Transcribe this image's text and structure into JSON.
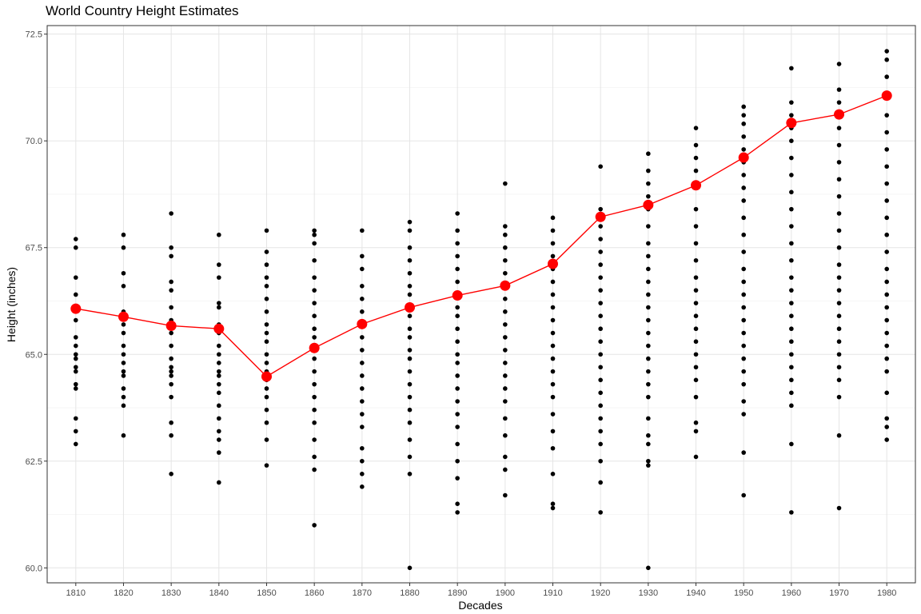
{
  "chart_data": {
    "type": "scatter",
    "title": "World Country Height Estimates",
    "xlabel": "Decades",
    "ylabel": "Height (inches)",
    "categories": [
      "1810",
      "1820",
      "1830",
      "1840",
      "1850",
      "1860",
      "1870",
      "1880",
      "1890",
      "1900",
      "1910",
      "1920",
      "1930",
      "1940",
      "1950",
      "1960",
      "1970",
      "1980"
    ],
    "ylim": [
      59.65,
      72.7
    ],
    "yticks": [
      60.0,
      62.5,
      65.0,
      67.5,
      70.0,
      72.5
    ],
    "ytick_labels": [
      "60.0",
      "62.5",
      "65.0",
      "67.5",
      "70.0",
      "72.5"
    ],
    "grid": true,
    "series": [
      {
        "type": "points",
        "color": "#000000",
        "values": [
          [
            67.7,
            67.5,
            66.8,
            66.4,
            66.1,
            65.8,
            65.4,
            65.2,
            65.0,
            64.9,
            64.7,
            64.6,
            64.3,
            64.2,
            63.5,
            63.2,
            62.9
          ],
          [
            67.8,
            67.5,
            66.9,
            66.6,
            66.0,
            65.9,
            65.7,
            65.5,
            65.2,
            65.0,
            64.8,
            64.6,
            64.5,
            64.2,
            64.0,
            63.8,
            63.1
          ],
          [
            68.3,
            67.5,
            67.3,
            66.7,
            66.5,
            66.1,
            65.8,
            65.5,
            65.2,
            64.9,
            64.7,
            64.6,
            64.5,
            64.3,
            64.0,
            63.4,
            63.1,
            62.2
          ],
          [
            67.8,
            67.1,
            66.8,
            66.2,
            66.1,
            65.7,
            65.5,
            65.2,
            65.0,
            64.8,
            64.6,
            64.5,
            64.3,
            64.1,
            63.8,
            63.5,
            63.2,
            63.0,
            62.7,
            62.0
          ],
          [
            67.9,
            67.4,
            67.1,
            66.8,
            66.6,
            66.3,
            66.0,
            65.7,
            65.5,
            65.3,
            65.0,
            64.8,
            64.6,
            64.4,
            64.2,
            64.0,
            63.7,
            63.4,
            63.0,
            62.4
          ],
          [
            67.9,
            67.8,
            67.6,
            67.2,
            66.8,
            66.5,
            66.2,
            65.9,
            65.6,
            65.4,
            65.1,
            64.9,
            64.6,
            64.3,
            64.0,
            63.7,
            63.4,
            63.0,
            62.6,
            62.3,
            61.0
          ],
          [
            67.9,
            67.3,
            67.0,
            66.6,
            66.3,
            66.0,
            65.7,
            65.4,
            65.1,
            64.8,
            64.5,
            64.2,
            63.9,
            63.6,
            63.3,
            62.8,
            62.5,
            62.2,
            61.9
          ],
          [
            68.1,
            67.9,
            67.5,
            67.2,
            66.9,
            66.6,
            66.4,
            66.1,
            65.9,
            65.6,
            65.4,
            65.1,
            64.9,
            64.6,
            64.3,
            64.0,
            63.7,
            63.4,
            63.0,
            62.6,
            62.2,
            60.0
          ],
          [
            68.3,
            67.9,
            67.6,
            67.3,
            67.0,
            66.7,
            66.4,
            66.1,
            65.9,
            65.6,
            65.3,
            65.0,
            64.8,
            64.5,
            64.2,
            63.9,
            63.6,
            63.3,
            62.9,
            62.5,
            62.1,
            61.5,
            61.3
          ],
          [
            69.0,
            68.0,
            67.8,
            67.5,
            67.2,
            66.9,
            66.6,
            66.3,
            66.0,
            65.7,
            65.4,
            65.1,
            64.8,
            64.5,
            64.2,
            63.9,
            63.5,
            63.1,
            62.6,
            62.3,
            61.7
          ],
          [
            68.2,
            67.9,
            67.6,
            67.3,
            67.0,
            66.7,
            66.4,
            66.1,
            65.8,
            65.5,
            65.2,
            64.9,
            64.6,
            64.3,
            64.0,
            63.6,
            63.2,
            62.8,
            62.2,
            61.5,
            61.4
          ],
          [
            69.4,
            68.4,
            68.0,
            67.7,
            67.4,
            67.1,
            66.8,
            66.5,
            66.2,
            65.9,
            65.6,
            65.3,
            65.0,
            64.7,
            64.4,
            64.1,
            63.8,
            63.5,
            63.2,
            62.9,
            62.5,
            62.0,
            61.3
          ],
          [
            69.7,
            69.3,
            69.0,
            68.7,
            68.4,
            68.0,
            67.6,
            67.3,
            67.0,
            66.7,
            66.4,
            66.1,
            65.8,
            65.5,
            65.2,
            64.9,
            64.6,
            64.3,
            64.0,
            63.5,
            63.1,
            62.9,
            62.5,
            62.4,
            60.0
          ],
          [
            70.3,
            69.9,
            69.6,
            69.3,
            68.9,
            68.4,
            68.0,
            67.6,
            67.2,
            66.8,
            66.5,
            66.2,
            65.9,
            65.6,
            65.3,
            65.0,
            64.7,
            64.4,
            64.0,
            63.4,
            63.2,
            62.6
          ],
          [
            70.8,
            70.6,
            70.4,
            70.1,
            69.8,
            69.5,
            69.2,
            68.9,
            68.6,
            68.2,
            67.8,
            67.4,
            67.0,
            66.7,
            66.4,
            66.1,
            65.8,
            65.5,
            65.2,
            64.9,
            64.6,
            64.3,
            63.9,
            63.6,
            62.7,
            61.7
          ],
          [
            71.7,
            70.9,
            70.6,
            70.3,
            70.0,
            69.6,
            69.2,
            68.8,
            68.4,
            68.0,
            67.6,
            67.2,
            66.8,
            66.5,
            66.2,
            65.9,
            65.6,
            65.3,
            65.0,
            64.7,
            64.4,
            64.1,
            63.8,
            62.9,
            61.3
          ],
          [
            71.8,
            71.2,
            70.9,
            70.6,
            70.3,
            69.9,
            69.5,
            69.1,
            68.7,
            68.3,
            67.9,
            67.5,
            67.1,
            66.8,
            66.5,
            66.2,
            65.9,
            65.6,
            65.3,
            65.0,
            64.7,
            64.4,
            64.0,
            63.1,
            61.4
          ],
          [
            72.1,
            71.9,
            71.5,
            71.0,
            70.6,
            70.2,
            69.8,
            69.4,
            69.0,
            68.6,
            68.2,
            67.8,
            67.4,
            67.0,
            66.7,
            66.4,
            66.1,
            65.8,
            65.5,
            65.2,
            64.9,
            64.6,
            64.1,
            63.5,
            63.3,
            63.0
          ]
        ]
      },
      {
        "type": "line",
        "color": "#ff0000",
        "values": [
          66.07,
          65.88,
          65.67,
          65.6,
          64.48,
          65.15,
          65.71,
          66.1,
          66.38,
          66.61,
          67.12,
          68.22,
          68.5,
          68.96,
          69.61,
          70.42,
          70.62,
          71.06
        ]
      }
    ]
  }
}
